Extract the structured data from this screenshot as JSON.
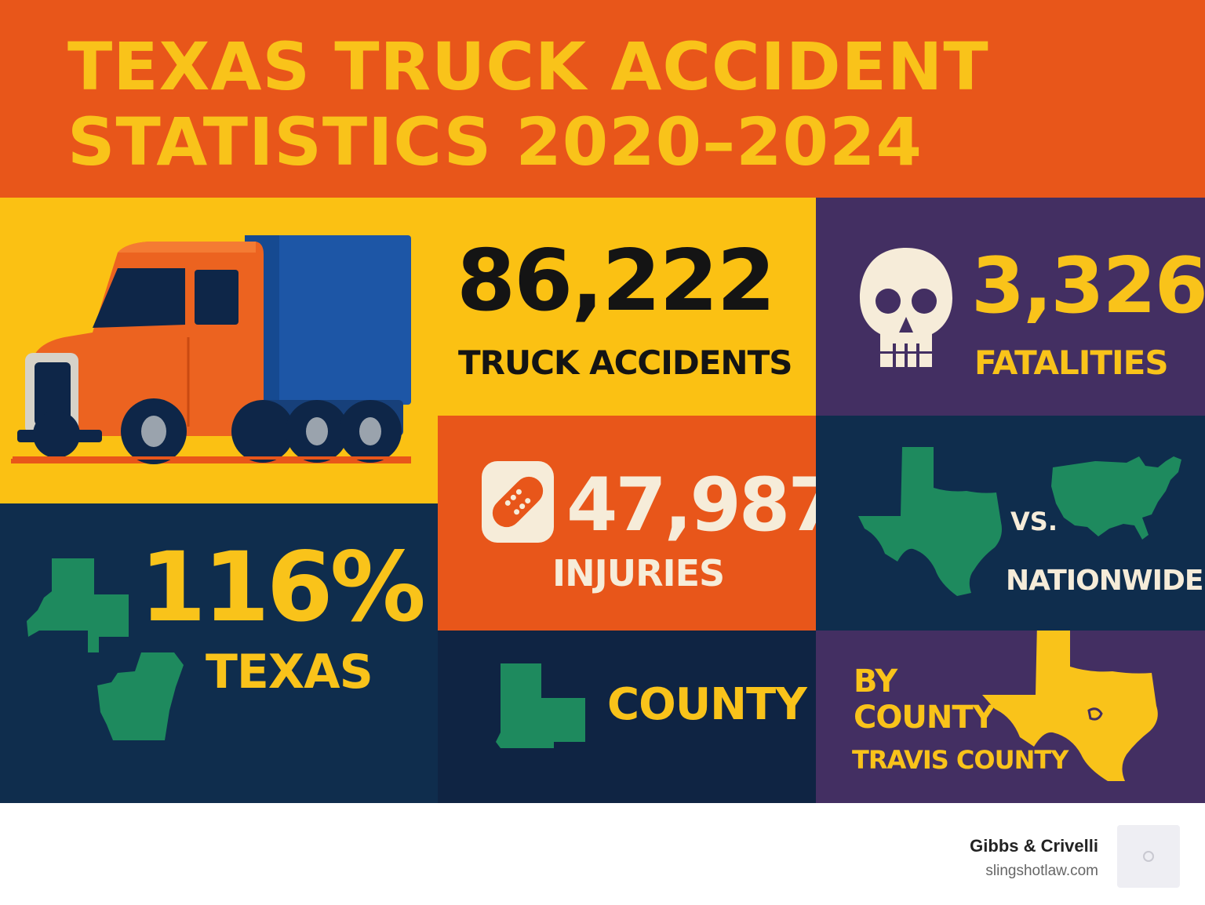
{
  "header": {
    "title_line1": "TEXAS TRUCK ACCIDENT",
    "title_line2": "STATISTICS 2020–2024"
  },
  "accidents": {
    "value": "86,222",
    "label": "TRUCK ACCIDENTS"
  },
  "fatalities": {
    "value": "3,326",
    "label": "FATALITIES",
    "icon": "skull-icon"
  },
  "injuries": {
    "value": "47,987",
    "label": "INJURIES",
    "icon": "bandage-icon"
  },
  "comparison": {
    "vs_label": "VS.",
    "label": "NATIONWIDE"
  },
  "texas_stat": {
    "value": "116%",
    "label": "TEXAS"
  },
  "county": {
    "label": "COUNTY"
  },
  "by_county": {
    "line1": "BY",
    "line2": "COUNTY",
    "line3": "TRAVIS COUNTY"
  },
  "footer": {
    "brand": "Gibbs & Crivelli",
    "url": "slingshotlaw.com"
  },
  "colors": {
    "orange": "#e8561a",
    "yellow": "#fbc113",
    "purple": "#432f62",
    "navy": "#0f2d4d",
    "green": "#1e8a5e",
    "cream": "#f6ecd9",
    "truck_blue": "#1d56a6"
  }
}
